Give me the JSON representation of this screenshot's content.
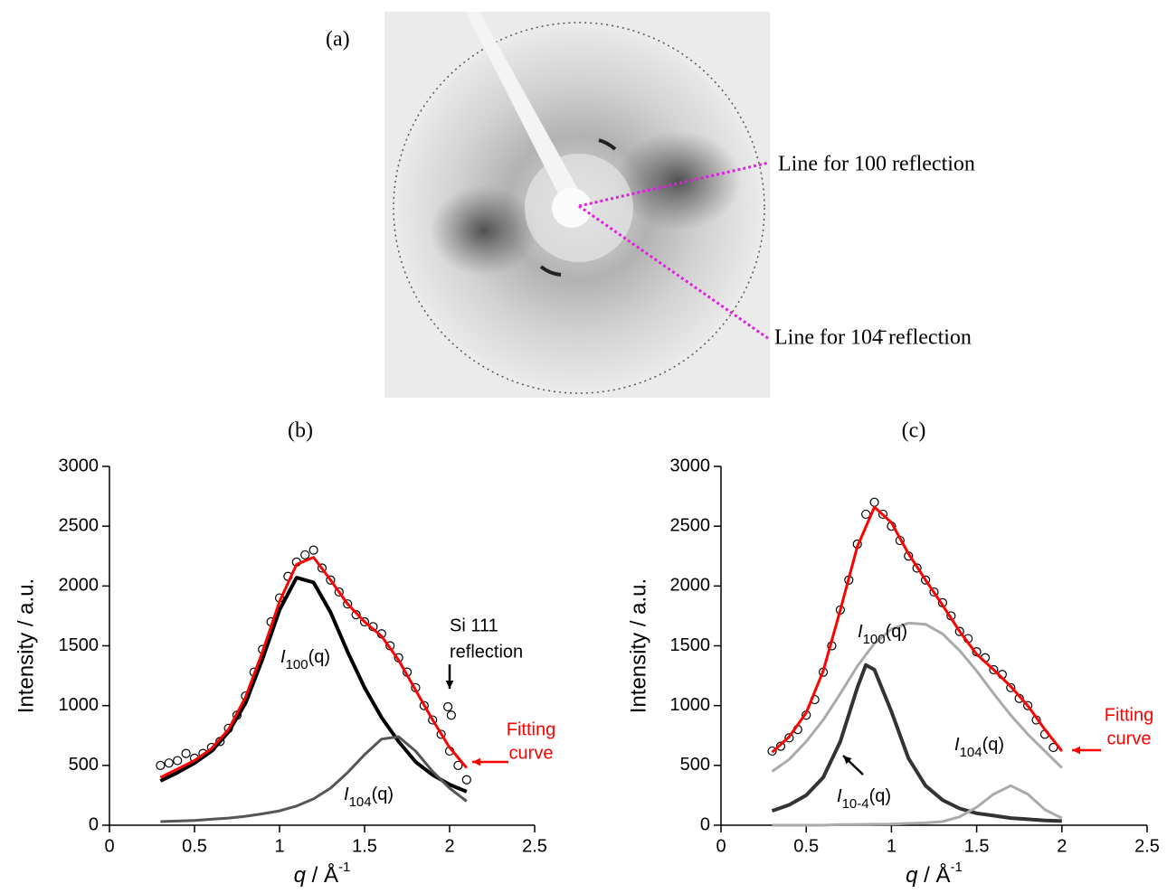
{
  "image_panel": {
    "label": "(a)",
    "line_color": "#e020e0",
    "annotations": [
      "Line for 100 reflection",
      "Line for 104̄ reflection"
    ]
  },
  "chart_data": [
    {
      "type": "line",
      "title": "(b)",
      "y_label": "Intensity / a.u.",
      "x_label": {
        "symbol": "q",
        "text": " / Å",
        "superscript": "-1"
      },
      "xlim": [
        0,
        2.5
      ],
      "xticks": [
        0,
        0.5,
        1,
        1.5,
        2,
        2.5
      ],
      "ylim": [
        0,
        3000
      ],
      "yticks": [
        0,
        500,
        1000,
        1500,
        2000,
        2500,
        3000
      ],
      "series": [
        {
          "style": "markers",
          "color": "#000000",
          "x": [
            0.3,
            0.35,
            0.4,
            0.45,
            0.5,
            0.55,
            0.6,
            0.65,
            0.7,
            0.75,
            0.8,
            0.85,
            0.9,
            0.95,
            1.0,
            1.05,
            1.1,
            1.15,
            1.2,
            1.25,
            1.3,
            1.35,
            1.4,
            1.45,
            1.5,
            1.55,
            1.6,
            1.65,
            1.7,
            1.75,
            1.8,
            1.85,
            1.9,
            1.95,
            2.0,
            2.05,
            2.1,
            1.99,
            2.01
          ],
          "values": [
            500,
            520,
            540,
            600,
            560,
            600,
            650,
            700,
            810,
            920,
            1080,
            1280,
            1470,
            1700,
            1900,
            2080,
            2200,
            2260,
            2300,
            2150,
            2050,
            1950,
            1850,
            1760,
            1700,
            1660,
            1600,
            1500,
            1400,
            1280,
            1150,
            1000,
            880,
            760,
            620,
            500,
            380,
            990,
            920
          ]
        },
        {
          "style": "line",
          "color": "#000000",
          "width": 4,
          "label": {
            "symbol": "I",
            "subscript": "100",
            "argument": "(q)"
          },
          "x": [
            0.3,
            0.4,
            0.5,
            0.6,
            0.7,
            0.8,
            0.9,
            1.0,
            1.1,
            1.2,
            1.3,
            1.4,
            1.5,
            1.6,
            1.7,
            1.8,
            1.9,
            2.0,
            2.1
          ],
          "values": [
            370,
            440,
            520,
            620,
            780,
            1020,
            1390,
            1800,
            2070,
            2030,
            1780,
            1450,
            1150,
            900,
            700,
            530,
            420,
            340,
            280
          ]
        },
        {
          "style": "line",
          "color": "#555555",
          "width": 3,
          "label": {
            "symbol": "I",
            "subscript": "104",
            "argument": "(q)"
          },
          "x": [
            0.3,
            0.4,
            0.5,
            0.6,
            0.7,
            0.8,
            0.9,
            1.0,
            1.1,
            1.2,
            1.3,
            1.4,
            1.5,
            1.6,
            1.7,
            1.8,
            1.9,
            2.0,
            2.1
          ],
          "values": [
            30,
            35,
            40,
            50,
            60,
            75,
            95,
            120,
            160,
            220,
            310,
            440,
            590,
            720,
            740,
            620,
            450,
            310,
            200
          ]
        },
        {
          "style": "line",
          "color": "#ff0000",
          "width": 3,
          "x": [
            0.3,
            0.4,
            0.5,
            0.6,
            0.7,
            0.8,
            0.9,
            1.0,
            1.1,
            1.2,
            1.3,
            1.4,
            1.5,
            1.6,
            1.7,
            1.8,
            1.9,
            2.0,
            2.1
          ],
          "values": [
            400,
            470,
            540,
            640,
            800,
            1070,
            1450,
            1870,
            2180,
            2240,
            2050,
            1850,
            1700,
            1580,
            1380,
            1130,
            880,
            650,
            480
          ]
        }
      ],
      "annotations": [
        {
          "text": "Si 111",
          "color": "#000000"
        },
        {
          "text": "reflection",
          "color": "#000000"
        },
        {
          "text": "Fitting",
          "color": "#ff0000"
        },
        {
          "text": "curve",
          "color": "#ff0000"
        }
      ]
    },
    {
      "type": "line",
      "title": "(c)",
      "y_label": "Intensity / a.u.",
      "x_label": {
        "symbol": "q",
        "text": " / Å",
        "superscript": "-1"
      },
      "xlim": [
        0,
        2.5
      ],
      "xticks": [
        0,
        0.5,
        1,
        1.5,
        2,
        2.5
      ],
      "ylim": [
        0,
        3000
      ],
      "yticks": [
        0,
        500,
        1000,
        1500,
        2000,
        2500,
        3000
      ],
      "series": [
        {
          "style": "markers",
          "color": "#000000",
          "x": [
            0.3,
            0.35,
            0.4,
            0.45,
            0.5,
            0.55,
            0.6,
            0.65,
            0.7,
            0.75,
            0.8,
            0.85,
            0.9,
            0.95,
            1.0,
            1.05,
            1.1,
            1.15,
            1.2,
            1.25,
            1.3,
            1.35,
            1.4,
            1.45,
            1.5,
            1.55,
            1.6,
            1.65,
            1.7,
            1.75,
            1.8,
            1.85,
            1.9,
            1.95
          ],
          "values": [
            620,
            660,
            730,
            800,
            920,
            1050,
            1280,
            1500,
            1800,
            2050,
            2350,
            2600,
            2700,
            2600,
            2500,
            2380,
            2250,
            2150,
            2050,
            1950,
            1860,
            1750,
            1620,
            1560,
            1450,
            1400,
            1300,
            1260,
            1150,
            1060,
            1000,
            880,
            760,
            650
          ]
        },
        {
          "style": "line",
          "color": "#aaaaaa",
          "width": 3,
          "label": {
            "symbol": "I",
            "subscript": "100",
            "argument": "(q)"
          },
          "x": [
            0.3,
            0.4,
            0.5,
            0.6,
            0.7,
            0.8,
            0.9,
            1.0,
            1.1,
            1.2,
            1.3,
            1.4,
            1.5,
            1.6,
            1.7,
            1.8,
            1.9,
            2.0
          ],
          "values": [
            450,
            550,
            700,
            880,
            1100,
            1330,
            1520,
            1640,
            1690,
            1680,
            1600,
            1460,
            1290,
            1100,
            920,
            760,
            620,
            480
          ]
        },
        {
          "style": "line",
          "color": "#333333",
          "width": 4,
          "label": {
            "symbol": "I",
            "subscript": "10-4",
            "argument": "(q)"
          },
          "x": [
            0.3,
            0.4,
            0.5,
            0.6,
            0.7,
            0.8,
            0.85,
            0.9,
            1.0,
            1.1,
            1.2,
            1.3,
            1.4,
            1.5,
            1.6,
            1.7,
            1.8,
            1.9,
            2.0
          ],
          "values": [
            120,
            170,
            250,
            400,
            700,
            1150,
            1340,
            1300,
            950,
            560,
            330,
            210,
            140,
            100,
            80,
            60,
            50,
            40,
            35
          ]
        },
        {
          "style": "line",
          "color": "#aaaaaa",
          "width": 3,
          "label": {
            "symbol": "I",
            "subscript": "104",
            "argument": "(q)"
          },
          "x": [
            0.3,
            0.4,
            0.5,
            0.6,
            0.7,
            0.8,
            0.9,
            1.0,
            1.1,
            1.2,
            1.3,
            1.4,
            1.5,
            1.6,
            1.7,
            1.8,
            1.9,
            2.0
          ],
          "values": [
            0,
            0,
            0,
            0,
            5,
            5,
            8,
            10,
            15,
            20,
            30,
            70,
            150,
            260,
            330,
            260,
            130,
            60
          ]
        },
        {
          "style": "line",
          "color": "#ff0000",
          "width": 3,
          "x": [
            0.3,
            0.4,
            0.5,
            0.6,
            0.7,
            0.8,
            0.9,
            1.0,
            1.1,
            1.2,
            1.3,
            1.4,
            1.5,
            1.6,
            1.7,
            1.8,
            1.9,
            2.0
          ],
          "values": [
            610,
            740,
            940,
            1290,
            1800,
            2330,
            2660,
            2530,
            2270,
            2050,
            1840,
            1620,
            1430,
            1300,
            1160,
            1000,
            800,
            620
          ]
        }
      ],
      "annotations": [
        {
          "text": "Fitting",
          "color": "#ff0000"
        },
        {
          "text": "curve",
          "color": "#ff0000"
        }
      ]
    }
  ]
}
